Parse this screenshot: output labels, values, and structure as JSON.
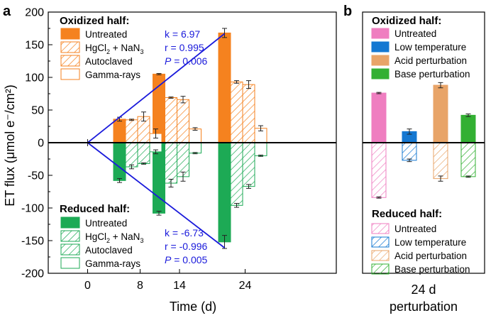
{
  "chart_data": [
    {
      "panel": "a",
      "type": "bar",
      "ylabel": "ET flux (μmol e⁻/cm²)",
      "xlabel": "Time (d)",
      "ylim": [
        -200,
        200
      ],
      "yticks": [
        -200,
        -150,
        -100,
        -50,
        0,
        50,
        100,
        150,
        200
      ],
      "x_categories": [
        "0",
        "8",
        "14",
        "24"
      ],
      "oxidized": {
        "title": "Oxidized half:",
        "color": "#f5821f",
        "stats": {
          "k": "k = 6.97",
          "r": "r = 0.995",
          "p_label": "P",
          "p_value": " = 0.006"
        },
        "series": [
          {
            "name": "Untreated",
            "fill": "solid",
            "values": [
              36,
              105,
              168
            ],
            "errors": [
              3,
              1,
              7
            ]
          },
          {
            "name_main": "HgCl",
            "name_sub": "2",
            "name_rest": " + NaN",
            "name_sub2": "3",
            "name": "HgCl2 + NaN3",
            "fill": "hatch",
            "values": [
              35,
              69,
              93
            ],
            "errors": [
              1,
              1,
              2
            ]
          },
          {
            "name": "Autoclaved",
            "fill": "hatch",
            "values": [
              40,
              66,
              89
            ],
            "errors": [
              7,
              5,
              6
            ]
          },
          {
            "name": "Gamma-rays",
            "fill": "open",
            "values": [
              14,
              21,
              22
            ],
            "errors": [
              7,
              2,
              4
            ]
          }
        ]
      },
      "reduced": {
        "title": "Reduced half:",
        "color": "#1daa55",
        "stats": {
          "k": "k = -6.73",
          "r": "r = -0.996",
          "p_label": "P",
          "p_value": " = 0.005"
        },
        "series": [
          {
            "name": "Untreated",
            "fill": "solid",
            "values": [
              -58,
              -108,
              -152
            ],
            "errors": [
              3,
              3,
              10
            ]
          },
          {
            "name_main": "HgCl",
            "name_sub": "2",
            "name_rest": " + NaN",
            "name_sub2": "3",
            "name": "HgCl2 + NaN3",
            "fill": "hatch",
            "values": [
              -37,
              -62,
              -96
            ],
            "errors": [
              3,
              6,
              3
            ]
          },
          {
            "name": "Autoclaved",
            "fill": "hatch",
            "values": [
              -32,
              -52,
              -67
            ],
            "errors": [
              1,
              7,
              3
            ]
          },
          {
            "name": "Gamma-rays",
            "fill": "open",
            "values": [
              -14,
              -16,
              -20
            ],
            "errors": [
              3,
              1,
              1
            ]
          }
        ]
      },
      "fit_lines": [
        {
          "name": "oxidized-fit",
          "color": "#1a1adb",
          "x_day": [
            0,
            24
          ],
          "y": [
            0,
            167
          ]
        },
        {
          "name": "reduced-fit",
          "color": "#1a1adb",
          "x_day": [
            0,
            24
          ],
          "y": [
            0,
            -161
          ]
        }
      ]
    },
    {
      "panel": "b",
      "type": "bar",
      "xlabel_line1": "24 d",
      "xlabel_line2": "perturbation",
      "ylim": [
        -200,
        200
      ],
      "oxidized": {
        "title": "Oxidized half:",
        "series": [
          {
            "name": "Untreated",
            "color": "#ef7ec0",
            "value": 76,
            "error": 1
          },
          {
            "name": "Low temperature",
            "color": "#1478d2",
            "value": 17,
            "error": 4
          },
          {
            "name": "Acid perturbation",
            "color": "#e8a468",
            "value": 88,
            "error": 4
          },
          {
            "name": "Base perturbation",
            "color": "#33b033",
            "value": 42,
            "error": 2
          }
        ]
      },
      "reduced": {
        "title": "Reduced half:",
        "series": [
          {
            "name": "Untreated",
            "color": "#ef7ec0",
            "value": -84,
            "error": 1
          },
          {
            "name": "Low temperature",
            "color": "#1478d2",
            "value": -27,
            "error": 2
          },
          {
            "name": "Acid perturbation",
            "color": "#e8a468",
            "value": -55,
            "error": 4
          },
          {
            "name": "Base perturbation",
            "color": "#33b033",
            "value": -52,
            "error": 1
          }
        ]
      }
    }
  ]
}
